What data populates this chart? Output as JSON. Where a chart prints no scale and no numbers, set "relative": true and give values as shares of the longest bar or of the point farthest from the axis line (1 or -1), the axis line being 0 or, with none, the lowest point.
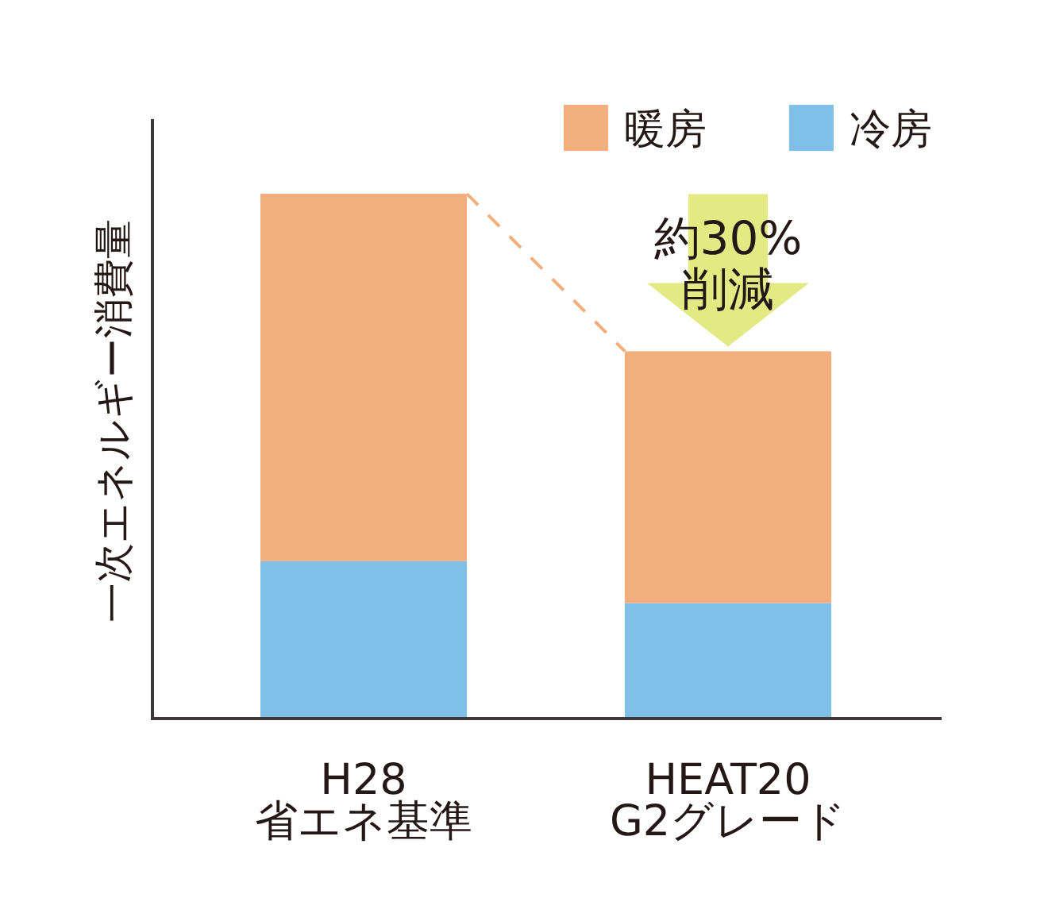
{
  "chart_data": {
    "type": "bar",
    "stacked": true,
    "relative": true,
    "ylabel": "一次エネルギー消費量",
    "categories": [
      "H28\n省エネ基準",
      "HEAT20\nG2グレード"
    ],
    "series": [
      {
        "name": "冷房",
        "color": "#80c0e8",
        "values": [
          0.3,
          0.22
        ]
      },
      {
        "name": "暖房",
        "color": "#f3ae7e",
        "values": [
          0.7,
          0.48
        ]
      }
    ],
    "legend": "top right",
    "annotations": [
      {
        "text": "約30%\n削減",
        "x": "HEAT20\nG2グレード",
        "y": 0.7
      }
    ]
  }
}
